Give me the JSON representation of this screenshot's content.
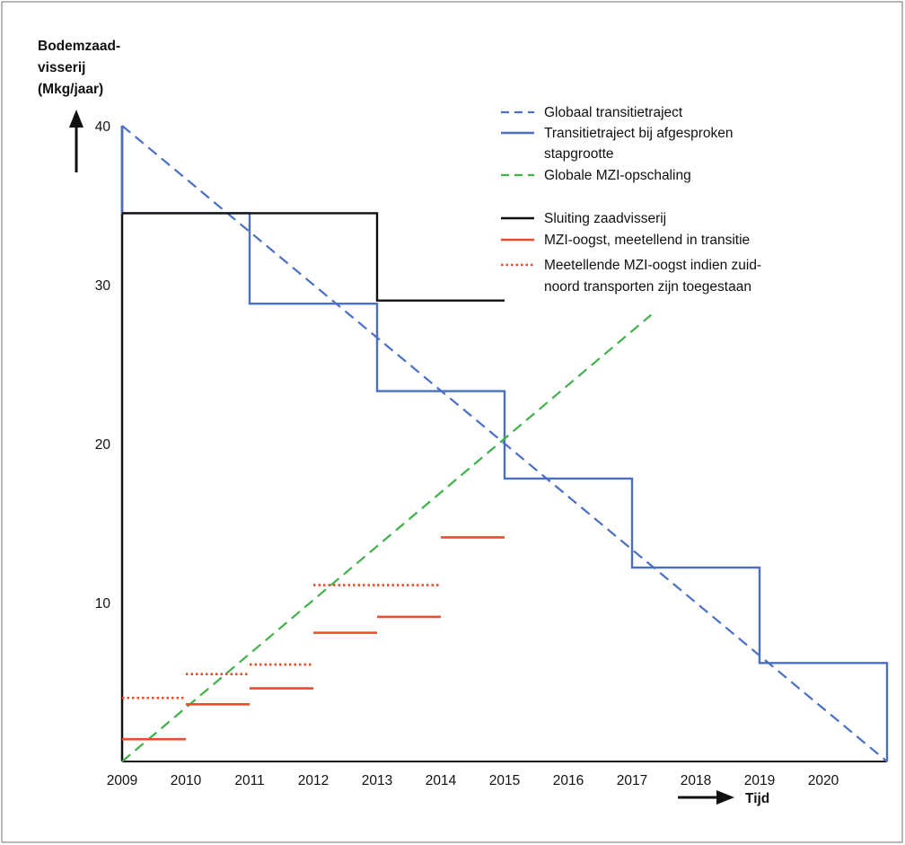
{
  "chart_data": {
    "type": "line",
    "ylabel_lines": [
      "Bodemzaad-",
      "visserij",
      "(Mkg/jaar)"
    ],
    "xlabel": "Tijd",
    "x_ticks": [
      "2009",
      "2010",
      "2011",
      "2012",
      "2013",
      "2014",
      "2015",
      "2016",
      "2017",
      "2018",
      "2019",
      "2020"
    ],
    "y_ticks": [
      "40",
      "30",
      "20",
      "10"
    ],
    "ylim": [
      0,
      40
    ],
    "xlim": [
      2009,
      2021
    ],
    "legend_position": "top-right",
    "colors": {
      "blue": "#4a6fc4",
      "green": "#3fb14a",
      "black": "#111111",
      "red": "#ee4b2b"
    },
    "series": [
      {
        "name": "Globaal transitietraject",
        "style": "dashed",
        "color": "#4a6fc4",
        "points": [
          [
            2009,
            40
          ],
          [
            2021,
            0
          ]
        ]
      },
      {
        "name_lines": [
          "Transitietraject bij afgesproken",
          "stapgrootte"
        ],
        "style": "solid-step",
        "color": "#4a6fc4",
        "points": [
          [
            2009,
            40
          ],
          [
            2009,
            34.5
          ],
          [
            2011,
            34.5
          ],
          [
            2011,
            28.8
          ],
          [
            2013,
            28.8
          ],
          [
            2013,
            23.3
          ],
          [
            2015,
            23.3
          ],
          [
            2015,
            17.8
          ],
          [
            2017,
            17.8
          ],
          [
            2017,
            12.2
          ],
          [
            2019,
            12.2
          ],
          [
            2019,
            6.2
          ],
          [
            2021,
            6.2
          ],
          [
            2021,
            0
          ]
        ]
      },
      {
        "name": "Globale MZI-opschaling",
        "style": "dashed",
        "color": "#3fb14a",
        "points": [
          [
            2009,
            0
          ],
          [
            2017.3,
            28.1
          ]
        ]
      },
      {
        "name": "Sluiting zaadvisserij",
        "style": "solid-step",
        "color": "#111111",
        "points": [
          [
            2009,
            34.5
          ],
          [
            2013,
            34.5
          ],
          [
            2013,
            33.9
          ],
          [
            2013,
            29
          ],
          [
            2015,
            29
          ]
        ]
      },
      {
        "name": "MZI-oogst, meetellend in transitie",
        "style": "solid-segments",
        "color": "#ee4b2b",
        "segments": [
          [
            2009,
            2010,
            1.4
          ],
          [
            2010,
            2011,
            3.6
          ],
          [
            2011,
            2012,
            4.6
          ],
          [
            2012,
            2013,
            8.1
          ],
          [
            2013,
            2014,
            9.1
          ],
          [
            2014,
            2015,
            14.1
          ]
        ]
      },
      {
        "name_lines": [
          "Meetellende MZI-oogst indien zuid-",
          "noord transporten zijn toegestaan"
        ],
        "style": "dotted-segments",
        "color": "#ee4b2b",
        "segments": [
          [
            2009,
            2010,
            4
          ],
          [
            2010,
            2011,
            5.5
          ],
          [
            2011,
            2012,
            6.1
          ],
          [
            2012,
            2013,
            11.1
          ],
          [
            2013,
            2014,
            11.1
          ]
        ]
      }
    ]
  }
}
